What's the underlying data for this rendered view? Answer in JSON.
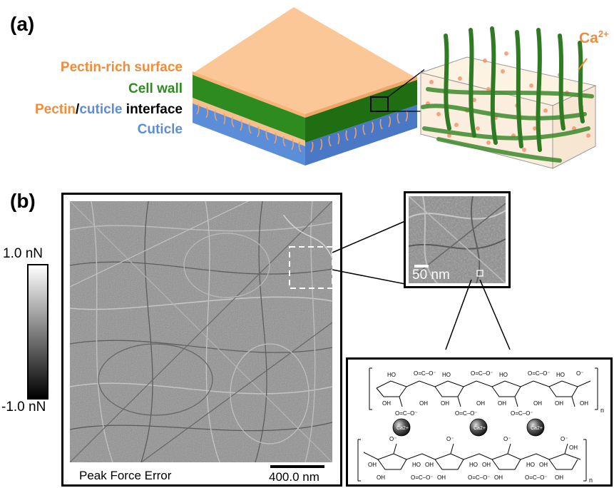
{
  "panel_a": {
    "label": "(a)",
    "layers": {
      "pectin_rich_surface": "Pectin-rich surface",
      "cell_wall": "Cell wall",
      "interface_pectin": "Pectin",
      "interface_slash": "/",
      "interface_cuticle": "cuticle",
      "interface_word": " interface",
      "cuticle": "Cuticle"
    },
    "ion_base": "Ca",
    "ion_charge": "2+"
  },
  "panel_b": {
    "label": "(b)",
    "colorbar_max": "1.0 nN",
    "colorbar_min": "-1.0 nN",
    "image_caption": "Peak Force Error",
    "scale_bar_main": "400.0 nm",
    "scale_bar_zoom": "50 nm",
    "structure": {
      "n_top": "n",
      "n_bottom": "n",
      "ca_ion": "Ca2+"
    }
  },
  "colors": {
    "pectin": "#f28c3a",
    "cell_wall": "#2e8b1f",
    "cuticle": "#5b8dd9",
    "surface": "#fcc797"
  }
}
